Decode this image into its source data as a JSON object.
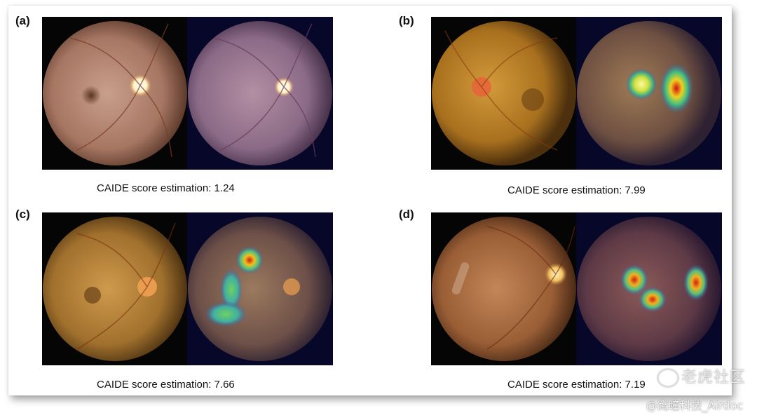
{
  "panels": [
    {
      "label": "(a)",
      "caption": "CAIDE score estimation: 1.24"
    },
    {
      "label": "(b)",
      "caption": "CAIDE score estimation: 7.99"
    },
    {
      "label": "(c)",
      "caption": "CAIDE score estimation: 7.66"
    },
    {
      "label": "(d)",
      "caption": "CAIDE score estimation: 7.19"
    }
  ],
  "watermark": {
    "logo_text": "老虎社区",
    "credit": "@鹰瞳科技_Airdoc"
  }
}
